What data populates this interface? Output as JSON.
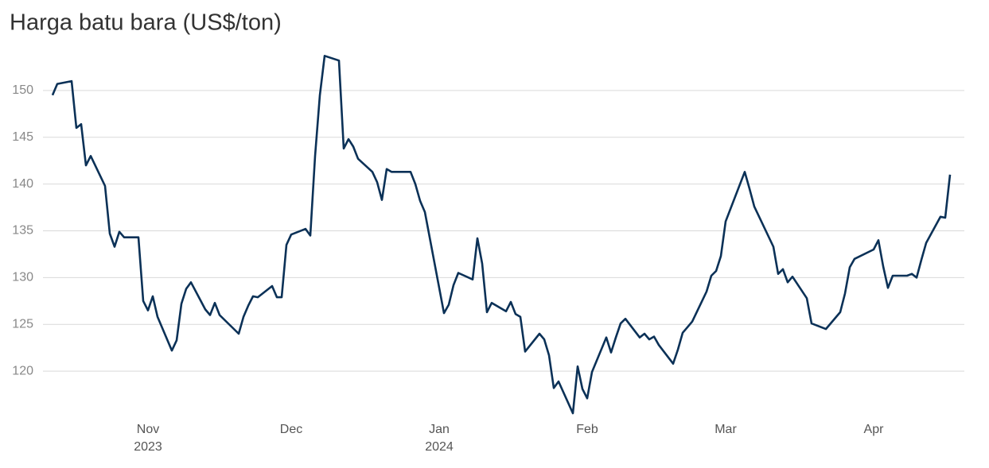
{
  "chart_data": {
    "type": "line",
    "title": "Harga batu bara (US$/ton)",
    "x": [
      0,
      1,
      4,
      5,
      6,
      7,
      8,
      11,
      12,
      13,
      14,
      15,
      18,
      19,
      20,
      21,
      22,
      25,
      26,
      27,
      28,
      29,
      32,
      33,
      34,
      35,
      39,
      40,
      41,
      42,
      43,
      46,
      47,
      48,
      49,
      50,
      53,
      54,
      55,
      56,
      57,
      60,
      61,
      62,
      63,
      64,
      67,
      68,
      69,
      70,
      71,
      75,
      76,
      77,
      78,
      82,
      83,
      84,
      85,
      88,
      89,
      90,
      91,
      92,
      95,
      96,
      97,
      98,
      99,
      102,
      103,
      104,
      105,
      106,
      109,
      110,
      111,
      112,
      113,
      116,
      117,
      118,
      119,
      120,
      123,
      124,
      125,
      126,
      127,
      130,
      131,
      132,
      133,
      134,
      137,
      138,
      139,
      140,
      141,
      145,
      146,
      147,
      151,
      152,
      153,
      154,
      155,
      158,
      159,
      162,
      165,
      166,
      167,
      168,
      172,
      173,
      174,
      175,
      176,
      179,
      180,
      181,
      182,
      183,
      186,
      187,
      188
    ],
    "series": [
      {
        "name": "Harga",
        "color": "#0b3157",
        "values": [
          149.5,
          150.7,
          151.0,
          146,
          146.4,
          142,
          143,
          139.8,
          134.7,
          133.3,
          134.9,
          134.3,
          134.3,
          127.5,
          126.5,
          128,
          125.8,
          122.2,
          123.3,
          127.2,
          128.8,
          129.5,
          126.6,
          126,
          127.3,
          126,
          124,
          125.8,
          127,
          128,
          127.9,
          129.1,
          127.9,
          127.9,
          133.5,
          134.6,
          135.2,
          134.5,
          143,
          149.5,
          153.7,
          153.2,
          143.8,
          144.8,
          144,
          142.7,
          141.3,
          140.2,
          138.3,
          141.6,
          141.3,
          141.3,
          140,
          138.2,
          137,
          126.2,
          127.1,
          129.2,
          130.5,
          129.8,
          134.2,
          131.5,
          126.3,
          127.3,
          126.4,
          127.4,
          126.1,
          125.8,
          122.1,
          124,
          123.4,
          121.7,
          118.2,
          118.9,
          115.5,
          120.5,
          118.1,
          117.1,
          119.9,
          123.6,
          122,
          123.6,
          125.1,
          125.6,
          123.6,
          124,
          123.4,
          123.7,
          122.8,
          120.8,
          122.3,
          124.1,
          124.7,
          125.3,
          128.5,
          130.2,
          130.7,
          132.3,
          136,
          141.3,
          139.5,
          137.6,
          133.3,
          130.4,
          130.9,
          129.5,
          130.1,
          127.8,
          125.1,
          124.5,
          126.3,
          128.3,
          131.1,
          132,
          133,
          134,
          131.2,
          128.9,
          130.2,
          130.2,
          130.4,
          130,
          131.9,
          133.7,
          136.5,
          136.4,
          141
        ]
      }
    ],
    "xlim": [
      -2,
      191
    ],
    "xticks": [
      {
        "value": 20,
        "label": "Nov 2023"
      },
      {
        "value": 50,
        "label": "Dec"
      },
      {
        "value": 81,
        "label": "Jan 2024"
      },
      {
        "value": 112,
        "label": "Feb"
      },
      {
        "value": 141,
        "label": "Mar"
      },
      {
        "value": 172,
        "label": "Apr"
      }
    ],
    "ylim": [
      115,
      155
    ],
    "yticks": [
      120,
      125,
      130,
      135,
      140,
      145,
      150
    ],
    "grid": true
  }
}
